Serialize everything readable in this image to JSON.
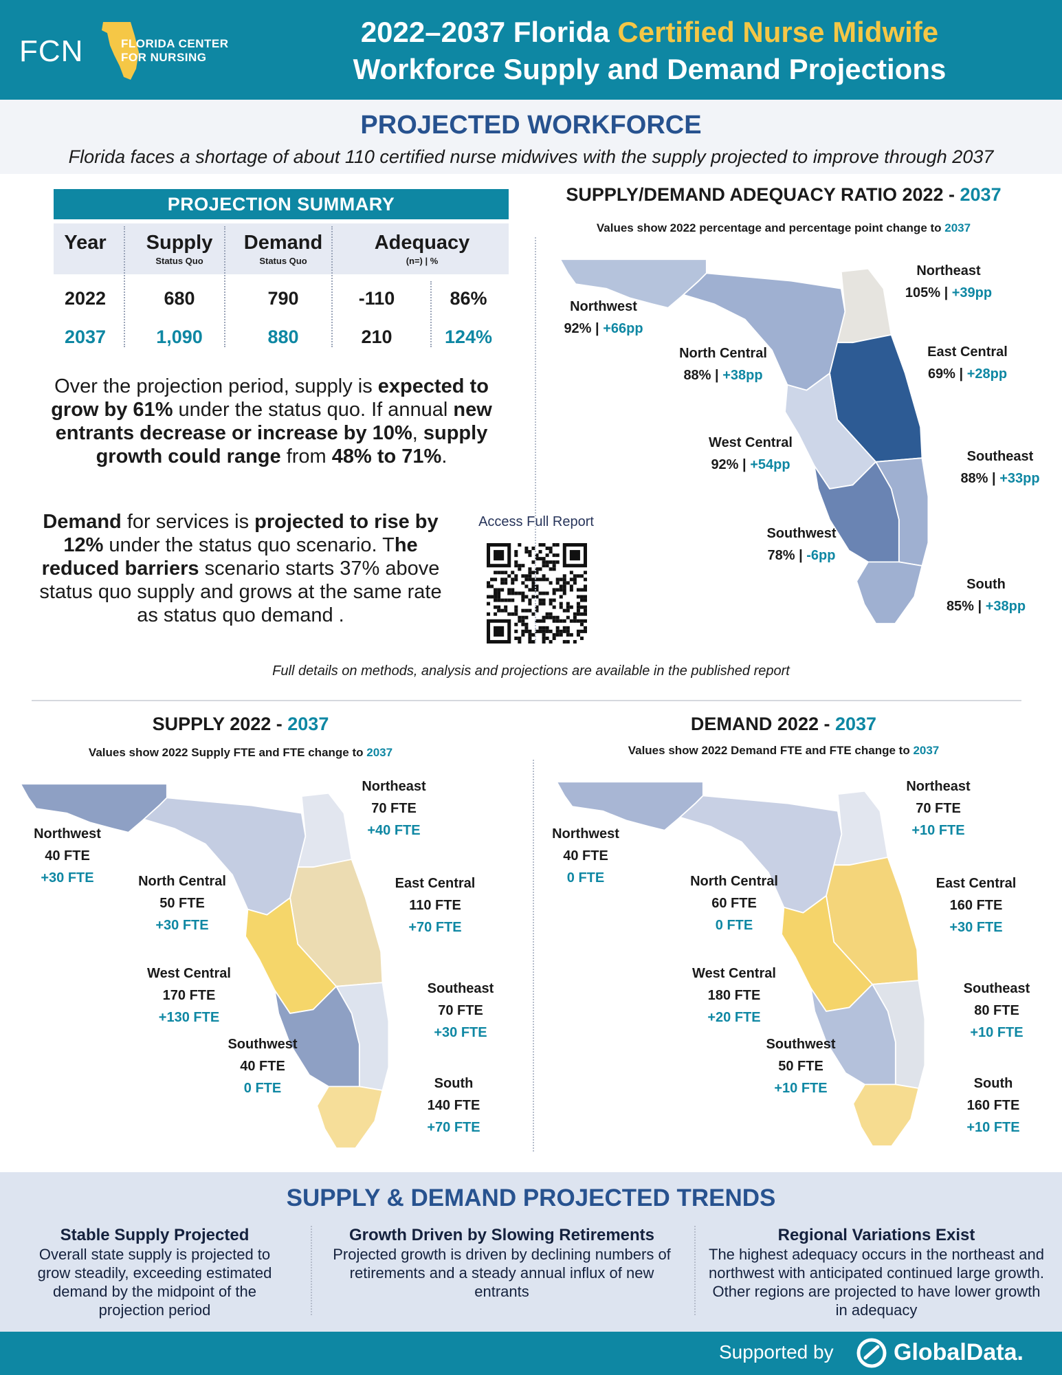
{
  "header": {
    "logo_abbr": "FCN",
    "logo_line1": "FLORIDA CENTER",
    "logo_line2": "FOR NURSING",
    "title_part1": "2022–2037 Florida ",
    "title_accent": "Certified Nurse Midwife",
    "title_line2": "Workforce Supply and Demand Projections"
  },
  "projected": {
    "heading": "PROJECTED WORKFORCE",
    "subtitle": "Florida faces a shortage of about 110 certified nurse midwives with the supply projected to improve through 2037"
  },
  "summary": {
    "heading": "PROJECTION SUMMARY",
    "col_year": "Year",
    "col_supply": "Supply",
    "col_supply_sub": "Status Quo",
    "col_demand": "Demand",
    "col_demand_sub": "Status Quo",
    "col_adequacy": "Adequacy",
    "col_adequacy_sub": "(n=) | %",
    "rows": [
      {
        "year": "2022",
        "supply": "680",
        "demand": "790",
        "adequacy_n": "-110",
        "adequacy_pct": "86%"
      },
      {
        "year": "2037",
        "supply": "1,090",
        "demand": "880",
        "adequacy_n": "210",
        "adequacy_pct": "124%"
      }
    ]
  },
  "para1": {
    "t1": "Over the projection period, supply is ",
    "b1": "expected to grow by 61%",
    "t2": " under the status quo. If annual ",
    "b2": "new entrants decrease or increase by 10%",
    "t3": ", ",
    "b3": "supply growth could range",
    "t4": " from ",
    "b4": "48% to 71%",
    "t5": "."
  },
  "para2": {
    "b1": "Demand",
    "t1": " for services is ",
    "b2": "projected to rise by 12%",
    "t2": " under the status quo scenario. T",
    "b3": "he reduced barriers",
    "t3": " scenario starts 37% above status quo supply and grows at the same rate as status quo demand ."
  },
  "qr": {
    "label": "Access Full Report"
  },
  "adequacy_map": {
    "title": "SUPPLY/DEMAND ADEQUACY RATIO 2022 - ",
    "title_year": "2037",
    "subtitle": "Values show 2022 percentage and percentage point change to ",
    "subtitle_year": "2037",
    "regions": [
      {
        "name": "Northwest",
        "value": "92% | ",
        "change": "+66pp"
      },
      {
        "name": "Northeast",
        "value": "105% | ",
        "change": "+39pp"
      },
      {
        "name": "North Central",
        "value": "88% | ",
        "change": "+38pp"
      },
      {
        "name": "East Central",
        "value": "69% | ",
        "change": "+28pp"
      },
      {
        "name": "West Central",
        "value": "92% | ",
        "change": "+54pp"
      },
      {
        "name": "Southeast",
        "value": "88% | ",
        "change": "+33pp"
      },
      {
        "name": "Southwest",
        "value": "78% | ",
        "change": "-6pp"
      },
      {
        "name": "South",
        "value": "85% | ",
        "change": "+38pp"
      }
    ],
    "colors": {
      "Northwest": "#b5c3dc",
      "Northeast": "#e6e4df",
      "North Central": "#9fb0d1",
      "East Central": "#2d5b94",
      "West Central": "#cdd6e8",
      "Southeast": "#9fb0d1",
      "Southwest": "#6a84b3",
      "South": "#9fb0d1"
    }
  },
  "note": "Full details on methods, analysis and projections are available in the published report",
  "supply_map": {
    "title": "SUPPLY 2022 - ",
    "title_year": "2037",
    "subtitle": "Values show 2022 Supply FTE and FTE change to ",
    "subtitle_year": "2037",
    "regions": [
      {
        "name": "Northwest",
        "value": "40 FTE",
        "change": "+30 FTE"
      },
      {
        "name": "Northeast",
        "value": "70 FTE",
        "change": "+40 FTE"
      },
      {
        "name": "North Central",
        "value": "50 FTE",
        "change": "+30 FTE"
      },
      {
        "name": "East Central",
        "value": "110 FTE",
        "change": "+70 FTE"
      },
      {
        "name": "West Central",
        "value": "170 FTE",
        "change": "+130 FTE"
      },
      {
        "name": "Southeast",
        "value": "70 FTE",
        "change": "+30 FTE"
      },
      {
        "name": "Southwest",
        "value": "40 FTE",
        "change": "0 FTE"
      },
      {
        "name": "South",
        "value": "140 FTE",
        "change": "+70 FTE"
      }
    ],
    "colors": {
      "Northwest": "#8ea0c4",
      "Northeast": "#e2e6ef",
      "North Central": "#c4cde2",
      "East Central": "#ecdcb2",
      "West Central": "#f5d66a",
      "Southeast": "#dde3ee",
      "Southwest": "#8ea0c4",
      "South": "#f6de99"
    }
  },
  "demand_map": {
    "title": "DEMAND 2022 - ",
    "title_year": "2037",
    "subtitle": "Values show 2022 Demand FTE and FTE change to ",
    "subtitle_year": "2037",
    "regions": [
      {
        "name": "Northwest",
        "value": "40 FTE",
        "change": "0 FTE"
      },
      {
        "name": "Northeast",
        "value": "70 FTE",
        "change": "+10 FTE"
      },
      {
        "name": "North Central",
        "value": "60 FTE",
        "change": "0 FTE"
      },
      {
        "name": "East Central",
        "value": "160 FTE",
        "change": "+30 FTE"
      },
      {
        "name": "West Central",
        "value": "180 FTE",
        "change": "+20 FTE"
      },
      {
        "name": "Southeast",
        "value": "80 FTE",
        "change": "+10 FTE"
      },
      {
        "name": "Southwest",
        "value": "50 FTE",
        "change": "+10 FTE"
      },
      {
        "name": "South",
        "value": "160 FTE",
        "change": "+10 FTE"
      }
    ],
    "colors": {
      "Northwest": "#a8b6d4",
      "Northeast": "#e2e6ef",
      "North Central": "#c8d0e4",
      "East Central": "#f4d57a",
      "West Central": "#f5d46a",
      "Southeast": "#dfe3ea",
      "Southwest": "#b4c1db",
      "South": "#f6dc90"
    }
  },
  "trends": {
    "heading": "SUPPLY & DEMAND PROJECTED TRENDS",
    "items": [
      {
        "title": "Stable Supply Projected",
        "text": "Overall state supply is projected to grow steadily, exceeding estimated demand by the midpoint of the projection period"
      },
      {
        "title": "Growth Driven by Slowing Retirements",
        "text": "Projected growth is driven by declining numbers of retirements and a steady annual influx of new entrants"
      },
      {
        "title": "Regional Variations Exist",
        "text": "The highest adequacy occurs in the northeast and northwest with anticipated continued large growth. Other regions are projected to have lower growth in adequacy"
      }
    ]
  },
  "footer": {
    "supported_by": "Supported by",
    "brand": "GlobalData."
  },
  "theme": {
    "teal": "#0e87a3",
    "navy": "#27528f",
    "gold": "#f5c746"
  }
}
